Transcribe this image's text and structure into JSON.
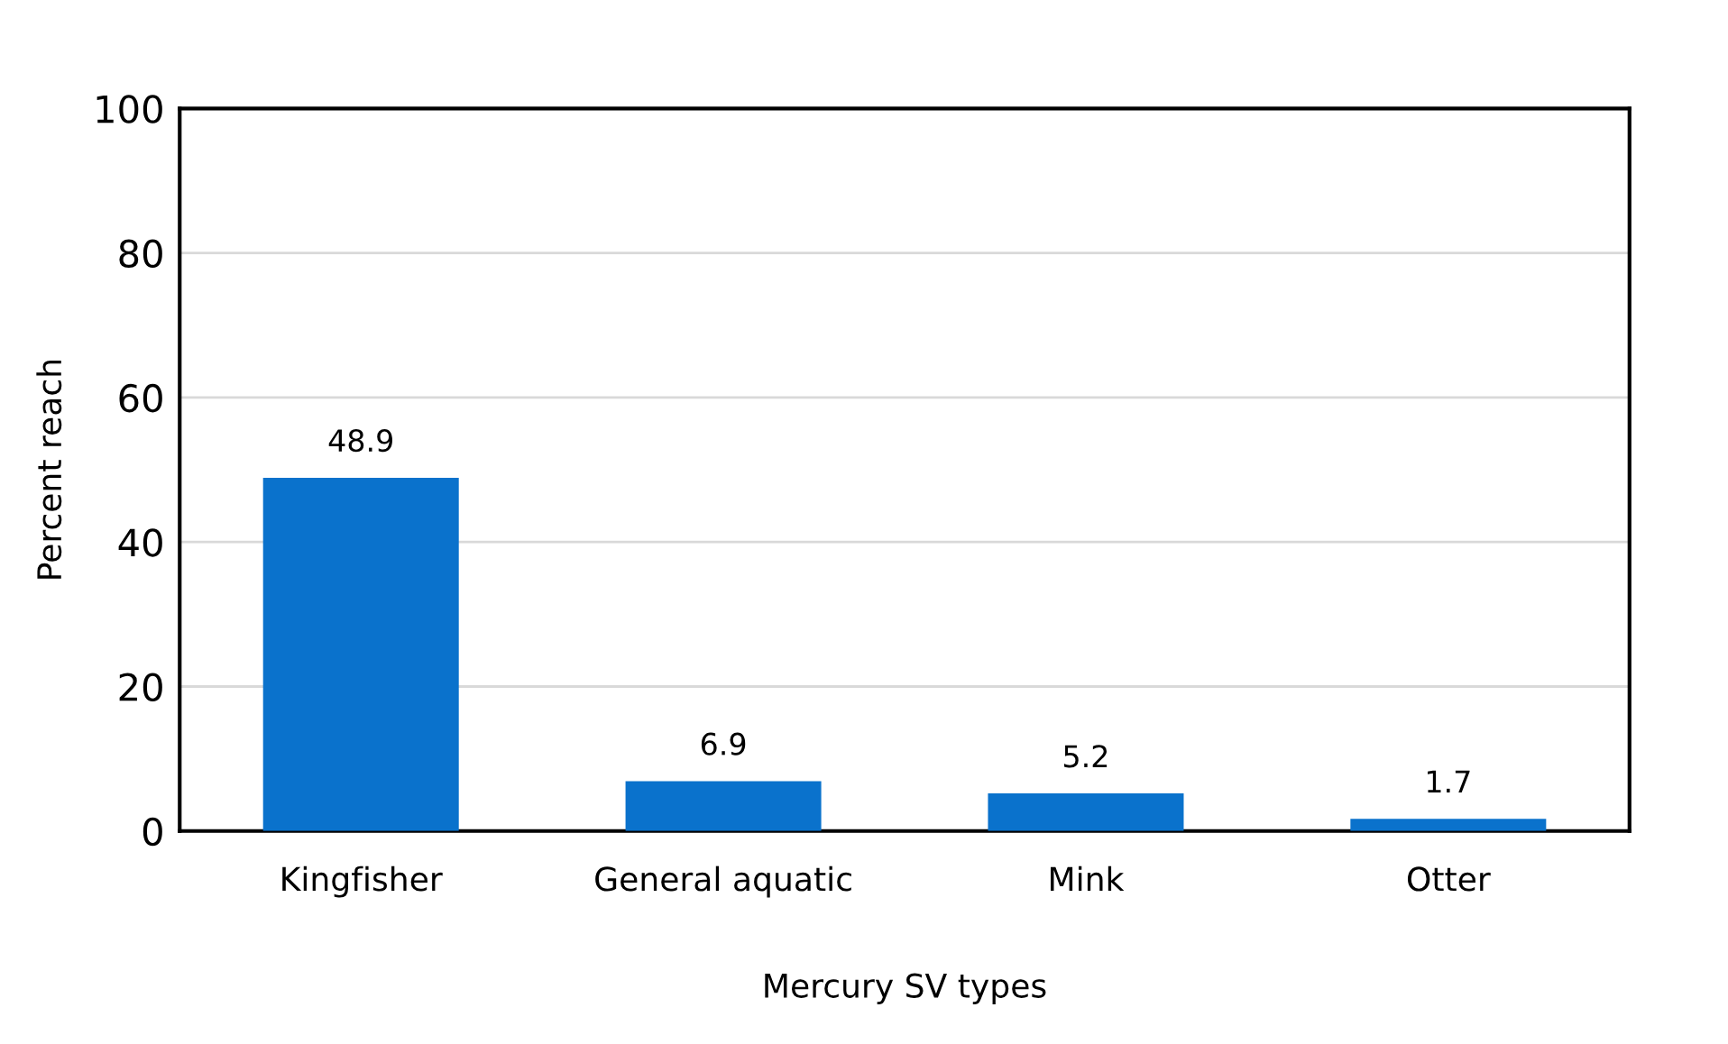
{
  "chart_data": {
    "type": "bar",
    "xlabel": "Mercury SV types",
    "ylabel": "Percent reach",
    "categories": [
      "Kingfisher",
      "General aquatic",
      "Mink",
      "Otter"
    ],
    "values": [
      48.9,
      6.9,
      5.2,
      1.7
    ],
    "color": "#0a72cc",
    "ylim": [
      0,
      100
    ],
    "yticks": [
      0,
      20,
      40,
      60,
      80,
      100
    ],
    "grid": "y",
    "data_labels": true
  }
}
